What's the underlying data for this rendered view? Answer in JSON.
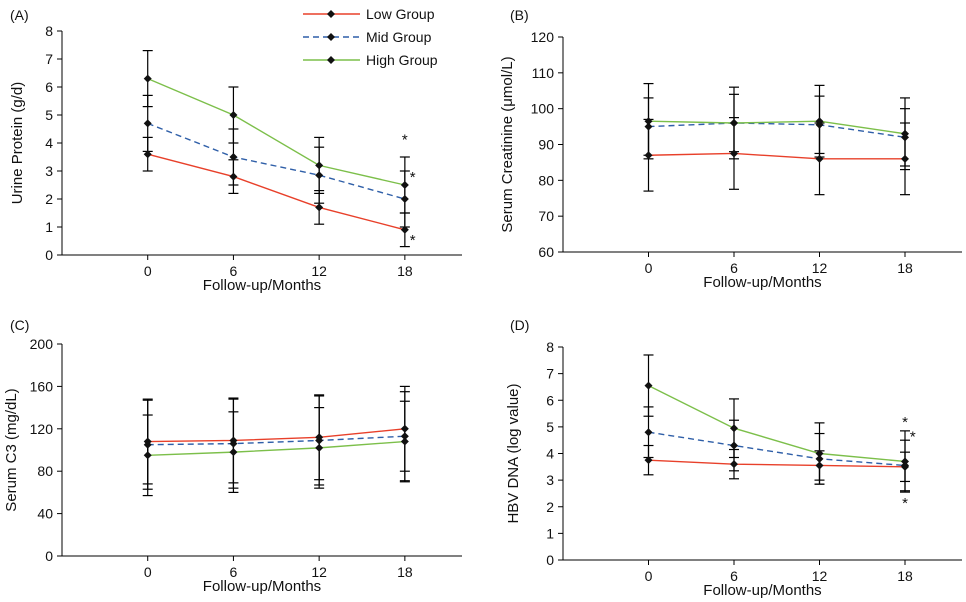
{
  "legend": [
    {
      "name": "Low Group",
      "color": "#e8402a",
      "dash": ""
    },
    {
      "name": "Mid Group",
      "color": "#2f5fa8",
      "dash": "6,4"
    },
    {
      "name": "High Group",
      "color": "#7cbf4a",
      "dash": ""
    }
  ],
  "chart_data": [
    {
      "panel": "(A)",
      "type": "line",
      "xlabel": "Follow-up/Months",
      "ylabel": "Urine Protein (g/d)",
      "x": [
        0,
        6,
        12,
        18
      ],
      "ylim": [
        0,
        8
      ],
      "yticks": [
        0,
        1,
        2,
        3,
        4,
        5,
        6,
        7,
        8
      ],
      "series": [
        {
          "name": "Low Group",
          "values": [
            3.6,
            2.8,
            1.7,
            0.9
          ],
          "err": [
            0.6,
            0.6,
            0.6,
            0.6
          ]
        },
        {
          "name": "Mid Group",
          "values": [
            4.7,
            3.5,
            2.85,
            2.0
          ],
          "err": [
            1.0,
            1.0,
            1.0,
            1.0
          ]
        },
        {
          "name": "High Group",
          "values": [
            6.3,
            5.0,
            3.2,
            2.5
          ],
          "err": [
            1.0,
            1.0,
            1.0,
            1.0
          ]
        }
      ],
      "annotations": [
        {
          "text": "*",
          "x": 18,
          "y": 3.95
        },
        {
          "text": "*",
          "x": 18.55,
          "y": 2.6
        },
        {
          "text": "*",
          "x": 18.55,
          "y": 0.35
        }
      ]
    },
    {
      "panel": "(B)",
      "type": "line",
      "xlabel": "Follow-up/Months",
      "ylabel": "Serum Creatinine (μmol/L)",
      "x": [
        0,
        6,
        12,
        18
      ],
      "ylim": [
        60,
        120
      ],
      "yticks": [
        60,
        70,
        80,
        90,
        100,
        110,
        120
      ],
      "series": [
        {
          "name": "Low Group",
          "values": [
            87,
            87.5,
            86,
            86
          ],
          "err": [
            10,
            10,
            10,
            10
          ]
        },
        {
          "name": "Mid Group",
          "values": [
            95,
            96,
            95.5,
            92
          ],
          "err": [
            8,
            8,
            8,
            8
          ]
        },
        {
          "name": "High Group",
          "values": [
            96.5,
            96,
            96.5,
            93
          ],
          "err": [
            10.5,
            10,
            10,
            10
          ]
        }
      ],
      "annotations": []
    },
    {
      "panel": "(C)",
      "type": "line",
      "xlabel": "Follow-up/Months",
      "ylabel": "Serum C3 (mg/dL)",
      "x": [
        0,
        6,
        12,
        18
      ],
      "ylim": [
        0,
        200
      ],
      "yticks": [
        0,
        40,
        80,
        120,
        160,
        200
      ],
      "series": [
        {
          "name": "Low Group",
          "values": [
            108,
            109,
            112,
            120
          ],
          "err": [
            40,
            40,
            40,
            40
          ]
        },
        {
          "name": "Mid Group",
          "values": [
            105,
            106,
            109,
            113
          ],
          "err": [
            42,
            42,
            42,
            42
          ]
        },
        {
          "name": "High Group",
          "values": [
            95,
            98,
            102,
            108
          ],
          "err": [
            38,
            38,
            38,
            38
          ]
        }
      ],
      "annotations": []
    },
    {
      "panel": "(D)",
      "type": "line",
      "xlabel": "Follow-up/Months",
      "ylabel": "HBV DNA (log value)",
      "x": [
        0,
        6,
        12,
        18
      ],
      "ylim": [
        0,
        8
      ],
      "yticks": [
        0,
        1,
        2,
        3,
        4,
        5,
        6,
        7,
        8
      ],
      "series": [
        {
          "name": "Low Group",
          "values": [
            3.75,
            3.6,
            3.55,
            3.5
          ],
          "err": [
            0.55,
            0.55,
            0.55,
            0.55
          ]
        },
        {
          "name": "Mid Group",
          "values": [
            4.8,
            4.3,
            3.8,
            3.55
          ],
          "err": [
            0.95,
            0.95,
            0.95,
            0.95
          ]
        },
        {
          "name": "High Group",
          "values": [
            6.55,
            4.95,
            4.0,
            3.7
          ],
          "err": [
            1.15,
            1.1,
            1.15,
            1.15
          ]
        }
      ],
      "annotations": [
        {
          "text": "*",
          "x": 18,
          "y": 5.0
        },
        {
          "text": "*",
          "x": 18.55,
          "y": 4.45
        },
        {
          "text": "*",
          "x": 18,
          "y": 1.95
        }
      ]
    }
  ]
}
